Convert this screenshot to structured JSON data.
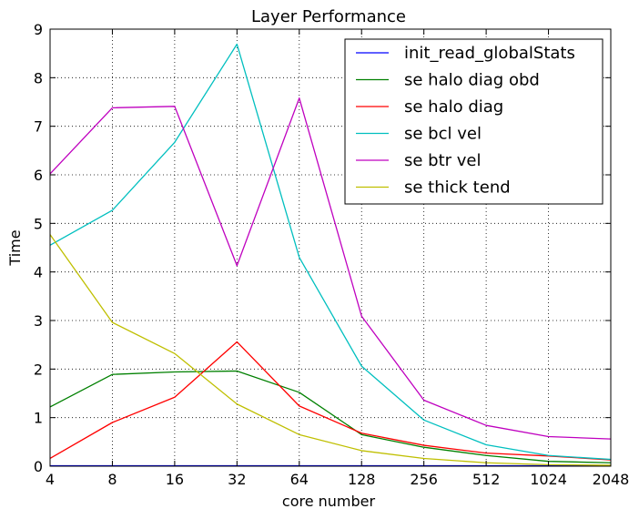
{
  "chart_data": {
    "type": "line",
    "title": "Layer Performance",
    "xlabel": "core number",
    "ylabel": "Time",
    "x_scale": "log2",
    "x": [
      4,
      8,
      16,
      32,
      64,
      128,
      256,
      512,
      1024,
      2048
    ],
    "x_tick_labels": [
      "4",
      "8",
      "16",
      "32",
      "64",
      "128",
      "256",
      "512",
      "1024",
      "2048"
    ],
    "ylim": [
      0,
      9
    ],
    "y_ticks": [
      0,
      1,
      2,
      3,
      4,
      5,
      6,
      7,
      8,
      9
    ],
    "grid": true,
    "legend_position": "top-right",
    "series": [
      {
        "name": "init_read_globalStats",
        "color": "#0000ff",
        "values": [
          0.01,
          0.01,
          0.01,
          0.01,
          0.01,
          0.01,
          0.01,
          0.01,
          0.01,
          0.01
        ]
      },
      {
        "name": "se halo diag obd",
        "color": "#008000",
        "values": [
          1.22,
          1.89,
          1.94,
          1.96,
          1.52,
          0.65,
          0.39,
          0.22,
          0.1,
          0.07
        ]
      },
      {
        "name": "se halo diag",
        "color": "#ff0000",
        "values": [
          0.16,
          0.9,
          1.42,
          2.56,
          1.24,
          0.68,
          0.43,
          0.27,
          0.21,
          0.13
        ]
      },
      {
        "name": "se bcl vel",
        "color": "#00bfbf",
        "values": [
          4.55,
          5.27,
          6.67,
          8.69,
          4.3,
          2.06,
          0.95,
          0.44,
          0.22,
          0.14
        ]
      },
      {
        "name": "se btr vel",
        "color": "#bf00bf",
        "values": [
          6.02,
          7.38,
          7.41,
          4.13,
          7.58,
          3.09,
          1.36,
          0.84,
          0.61,
          0.56
        ]
      },
      {
        "name": "se thick tend",
        "color": "#bfbf00",
        "values": [
          4.77,
          2.96,
          2.32,
          1.28,
          0.65,
          0.32,
          0.16,
          0.07,
          0.03,
          0.02
        ]
      }
    ]
  }
}
